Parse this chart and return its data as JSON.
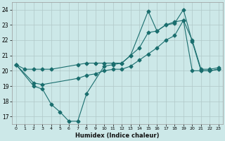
{
  "xlabel": "Humidex (Indice chaleur)",
  "ylabel": "",
  "bg_color": "#cce8e8",
  "grid_color": "#b0c8c8",
  "line_color": "#1a6e6e",
  "xlim": [
    -0.5,
    23.5
  ],
  "ylim": [
    16.5,
    24.5
  ],
  "xticks": [
    0,
    1,
    2,
    3,
    4,
    5,
    6,
    7,
    8,
    9,
    10,
    11,
    12,
    13,
    14,
    15,
    16,
    17,
    18,
    19,
    20,
    21,
    22,
    23
  ],
  "yticks": [
    17,
    18,
    19,
    20,
    21,
    22,
    23,
    24
  ],
  "line1_x": [
    0,
    1,
    2,
    3,
    4,
    7,
    8,
    9,
    10,
    11,
    12,
    13,
    14,
    15,
    16,
    17,
    18,
    19,
    20,
    21,
    22,
    23
  ],
  "line1_y": [
    20.4,
    20.1,
    20.1,
    20.1,
    20.1,
    20.4,
    20.5,
    20.5,
    20.5,
    20.5,
    20.5,
    21.0,
    21.5,
    22.5,
    22.6,
    23.0,
    23.2,
    23.3,
    20.0,
    20.0,
    20.0,
    20.1
  ],
  "line2_x": [
    0,
    2,
    3,
    4,
    5,
    6,
    7,
    8,
    10,
    11,
    12,
    13,
    15,
    16,
    17,
    18,
    19,
    20,
    21,
    22,
    23
  ],
  "line2_y": [
    20.4,
    19.0,
    18.8,
    17.8,
    17.3,
    16.7,
    16.7,
    18.5,
    20.3,
    20.4,
    20.5,
    21.0,
    23.9,
    22.6,
    23.0,
    23.1,
    24.0,
    21.9,
    20.0,
    20.0,
    20.1
  ],
  "line3_x": [
    0,
    2,
    3,
    7,
    8,
    9,
    10,
    11,
    12,
    13,
    14,
    15,
    16,
    17,
    18,
    19,
    20,
    21,
    22,
    23
  ],
  "line3_y": [
    20.4,
    19.2,
    19.1,
    19.5,
    19.7,
    19.8,
    20.0,
    20.1,
    20.1,
    20.3,
    20.7,
    21.1,
    21.5,
    22.0,
    22.3,
    23.3,
    22.0,
    20.1,
    20.1,
    20.2
  ],
  "marker": "D",
  "markersize": 2.5,
  "linewidth": 0.8
}
